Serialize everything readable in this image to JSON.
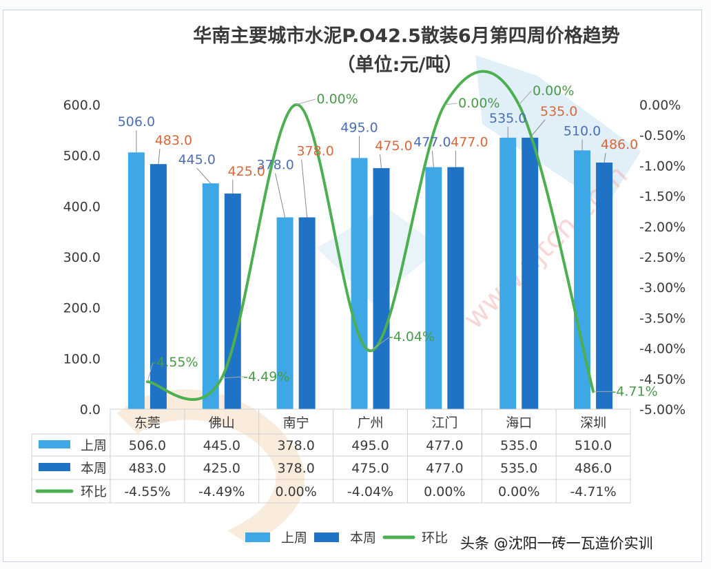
{
  "chart_data": {
    "type": "bar+line",
    "title": "华南主要城市水泥P.O42.5散装6月第四周价格趋势",
    "subtitle": "（单位:元/吨）",
    "categories": [
      "东莞",
      "佛山",
      "南宁",
      "广州",
      "江门",
      "海口",
      "深圳"
    ],
    "series": [
      {
        "name": "上周",
        "type": "bar",
        "axis": "left",
        "color": "#3ea8e6",
        "values": [
          506.0,
          445.0,
          378.0,
          495.0,
          477.0,
          535.0,
          510.0
        ],
        "labels": [
          "506.0",
          "445.0",
          "378.0",
          "495.0",
          "477.0",
          "535.0",
          "510.0"
        ],
        "label_color": "#4a6fb5"
      },
      {
        "name": "本周",
        "type": "bar",
        "axis": "left",
        "color": "#1f72c4",
        "values": [
          483.0,
          425.0,
          378.0,
          475.0,
          477.0,
          535.0,
          486.0
        ],
        "labels": [
          "483.0",
          "425.0",
          "378.0",
          "475.0",
          "477.0",
          "535.0",
          "486.0"
        ],
        "label_color": "#d9683a"
      },
      {
        "name": "环比",
        "type": "line",
        "axis": "right",
        "color": "#4caf50",
        "values": [
          -4.55,
          -4.49,
          0.0,
          -4.04,
          0.0,
          0.0,
          -4.71
        ],
        "labels": [
          "-4.55%",
          "-4.49%",
          "0.00%",
          "-4.04%",
          "0.00%",
          "0.00%",
          "-4.71%"
        ],
        "label_color": "#4a9a4a"
      }
    ],
    "y_left": {
      "range": [
        0,
        600
      ],
      "ticks": [
        "0.0",
        "100.0",
        "200.0",
        "300.0",
        "400.0",
        "500.0",
        "600.0"
      ]
    },
    "y_right": {
      "range": [
        -5.0,
        0.0
      ],
      "ticks": [
        "0.00%",
        "-0.50%",
        "-1.00%",
        "-1.50%",
        "-2.00%",
        "-2.50%",
        "-3.00%",
        "-3.50%",
        "-4.00%",
        "-4.50%",
        "-5.00%"
      ]
    },
    "data_table": {
      "rows": [
        {
          "label": "上周",
          "cells": [
            "506.0",
            "445.0",
            "378.0",
            "495.0",
            "477.0",
            "535.0",
            "510.0"
          ]
        },
        {
          "label": "本周",
          "cells": [
            "483.0",
            "425.0",
            "378.0",
            "475.0",
            "477.0",
            "535.0",
            "486.0"
          ]
        },
        {
          "label": "环比",
          "cells": [
            "-4.55%",
            "-4.49%",
            "0.00%",
            "-4.04%",
            "0.00%",
            "0.00%",
            "-4.71%"
          ]
        }
      ]
    },
    "legend": {
      "position": "bottom",
      "items": [
        "上周",
        "本周",
        "环比"
      ]
    },
    "grid": false
  },
  "credit": "头条 @沈阳一砖一瓦造价实训",
  "watermark": "www.zjtcn.com"
}
